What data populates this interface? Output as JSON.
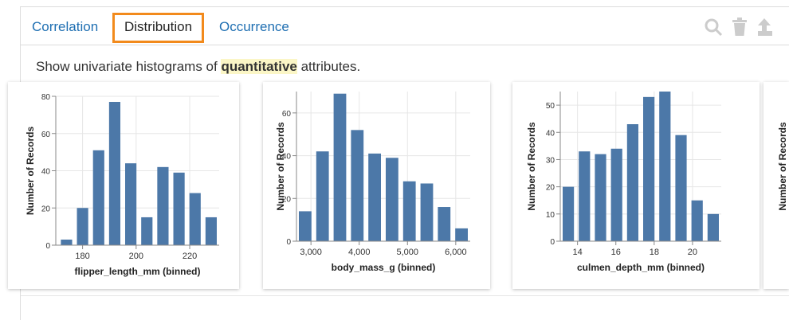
{
  "tabs": [
    "Correlation",
    "Distribution",
    "Occurrence"
  ],
  "active_tab": 1,
  "description": {
    "before": "Show univariate histograms of ",
    "highlight": "quantitative",
    "after": " attributes."
  },
  "chart_data": [
    {
      "type": "histogram",
      "x_title": "flipper_length_mm (binned)",
      "y_title": "Number of Records",
      "color": "#4c78a8",
      "grid": true,
      "bins": [
        171,
        177,
        183,
        189,
        195,
        201,
        207,
        213,
        219,
        225,
        231
      ],
      "values": [
        3,
        20,
        51,
        77,
        44,
        15,
        42,
        39,
        28,
        15
      ],
      "xlim": [
        170,
        231
      ],
      "xticks": [
        180,
        200,
        220
      ],
      "ylim": [
        0,
        80
      ],
      "yticks": [
        0,
        20,
        40,
        60,
        80
      ]
    },
    {
      "type": "histogram",
      "x_title": "body_mass_g (binned)",
      "y_title": "Number of Records",
      "color": "#4c78a8",
      "grid": true,
      "bins": [
        2700,
        3060,
        3420,
        3780,
        4140,
        4500,
        4860,
        5220,
        5580,
        5940,
        6300
      ],
      "values": [
        14,
        42,
        69,
        52,
        41,
        39,
        28,
        27,
        16,
        6
      ],
      "xlim": [
        2700,
        6300
      ],
      "xticks": [
        {
          "value": 3000,
          "label": "3,000"
        },
        {
          "value": 4000,
          "label": "4,000"
        },
        {
          "value": 5000,
          "label": "5,000"
        },
        {
          "value": 6000,
          "label": "6,000"
        }
      ],
      "ylim": [
        0,
        70
      ],
      "yticks": [
        0,
        20,
        40,
        60
      ]
    },
    {
      "type": "histogram",
      "x_title": "culmen_depth_mm (binned)",
      "y_title": "Number of Records",
      "color": "#4c78a8",
      "grid": true,
      "bins": [
        13.1,
        13.94,
        14.78,
        15.62,
        16.46,
        17.3,
        18.14,
        18.98,
        19.82,
        20.66,
        21.5
      ],
      "values": [
        20,
        33,
        32,
        34,
        43,
        53,
        55,
        39,
        15,
        10
      ],
      "xlim": [
        13.1,
        21.5
      ],
      "xticks": [
        14,
        16,
        18,
        20
      ],
      "ylim": [
        0,
        55
      ],
      "yticks": [
        0,
        10,
        20,
        30,
        40,
        50
      ]
    }
  ],
  "clipped_chart": {
    "y_title": "Number of Records"
  }
}
